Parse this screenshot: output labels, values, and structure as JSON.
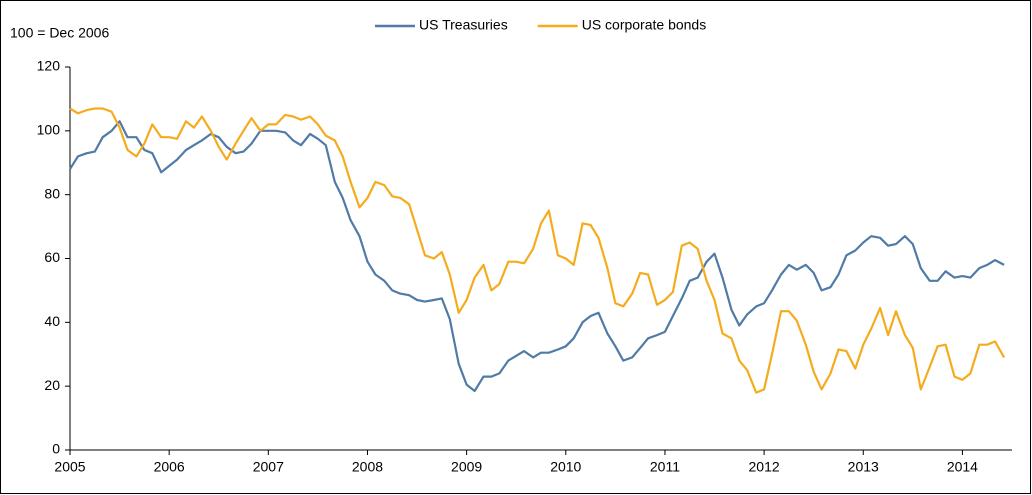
{
  "chart_data": {
    "type": "line",
    "annotation": "100 = Dec 2006",
    "x": [
      2005,
      2005.08,
      2005.17,
      2005.25,
      2005.33,
      2005.42,
      2005.5,
      2005.58,
      2005.67,
      2005.75,
      2005.83,
      2005.92,
      2006,
      2006.08,
      2006.17,
      2006.25,
      2006.33,
      2006.42,
      2006.5,
      2006.58,
      2006.67,
      2006.75,
      2006.83,
      2006.92,
      2007,
      2007.08,
      2007.17,
      2007.25,
      2007.33,
      2007.42,
      2007.5,
      2007.58,
      2007.67,
      2007.75,
      2007.83,
      2007.92,
      2008,
      2008.08,
      2008.17,
      2008.25,
      2008.33,
      2008.42,
      2008.5,
      2008.58,
      2008.67,
      2008.75,
      2008.83,
      2008.92,
      2009,
      2009.08,
      2009.17,
      2009.25,
      2009.33,
      2009.42,
      2009.5,
      2009.58,
      2009.67,
      2009.75,
      2009.83,
      2009.92,
      2010,
      2010.08,
      2010.17,
      2010.25,
      2010.33,
      2010.42,
      2010.5,
      2010.58,
      2010.67,
      2010.75,
      2010.83,
      2010.92,
      2011,
      2011.08,
      2011.17,
      2011.25,
      2011.33,
      2011.42,
      2011.5,
      2011.58,
      2011.67,
      2011.75,
      2011.83,
      2011.92,
      2012,
      2012.08,
      2012.17,
      2012.25,
      2012.33,
      2012.42,
      2012.5,
      2012.58,
      2012.67,
      2012.75,
      2012.83,
      2012.92,
      2013,
      2013.08,
      2013.17,
      2013.25,
      2013.33,
      2013.42,
      2013.5,
      2013.58,
      2013.67,
      2013.75,
      2013.83,
      2013.92,
      2014,
      2014.08,
      2014.17,
      2014.25,
      2014.33,
      2014.42
    ],
    "series": [
      {
        "name": "US Treasuries",
        "color": "#4f7ba6",
        "values": [
          88,
          92,
          93,
          93.5,
          98,
          100,
          103,
          98,
          98,
          94,
          93,
          87,
          89,
          91,
          94,
          95.5,
          97,
          99,
          98,
          95,
          93,
          93.5,
          96,
          100,
          100,
          100,
          99.5,
          97,
          95.5,
          99,
          97.5,
          95.5,
          84,
          79,
          72,
          67,
          59,
          55,
          53,
          50,
          49,
          48.5,
          47,
          46.5,
          47,
          47.5,
          41,
          27,
          20.5,
          18.5,
          23,
          23,
          24,
          28,
          29.5,
          31,
          29,
          30.5,
          30.5,
          31.5,
          32.5,
          35,
          40,
          42,
          43,
          36.5,
          32.5,
          28,
          29,
          32,
          35,
          36,
          37,
          42,
          47.5,
          53,
          54,
          59,
          61.5,
          54,
          44,
          39,
          42.5,
          45,
          46,
          50,
          55,
          58,
          56.5,
          58,
          55.5,
          50,
          51,
          55,
          61,
          62.5,
          65,
          67,
          66.5,
          64,
          64.5,
          67,
          64.5,
          57,
          53,
          53,
          56,
          54,
          54.5,
          54,
          57,
          58,
          59.5,
          58
        ]
      },
      {
        "name": "US corporate bonds",
        "color": "#f4ac1e",
        "values": [
          107,
          105.5,
          106.5,
          107,
          107,
          106,
          101,
          94,
          92,
          96,
          102,
          98,
          98,
          97.5,
          103,
          101,
          104.5,
          100,
          95,
          91,
          96,
          100,
          104,
          100,
          102,
          102,
          105,
          104.5,
          103.5,
          104.5,
          102,
          98.5,
          97,
          92,
          84,
          76,
          79,
          84,
          83,
          79.5,
          79,
          77,
          69,
          61,
          60,
          62,
          55,
          43,
          47,
          54,
          58,
          50,
          52,
          59,
          59,
          58.5,
          63,
          71,
          75,
          61,
          60,
          58,
          71,
          70.5,
          66.5,
          57,
          46,
          45,
          49,
          55.5,
          55,
          45.5,
          47,
          49.5,
          64,
          65,
          63,
          53,
          47,
          36.5,
          35,
          28,
          25,
          18,
          19,
          30,
          43.5,
          43.5,
          40.5,
          33,
          24.5,
          19,
          24,
          31.5,
          31,
          25.5,
          33,
          38,
          44.5,
          36,
          43.5,
          36,
          32,
          19,
          26,
          32.5,
          33,
          23,
          22,
          24,
          33,
          33,
          34,
          29
        ]
      }
    ],
    "xlim": [
      2005,
      2014.5
    ],
    "xticks": [
      2005,
      2006,
      2007,
      2008,
      2009,
      2010,
      2011,
      2012,
      2013,
      2014
    ],
    "ylim": [
      0,
      120
    ],
    "yticks": [
      0,
      20,
      40,
      60,
      80,
      100,
      120
    ],
    "grid": false,
    "legend": "top"
  }
}
